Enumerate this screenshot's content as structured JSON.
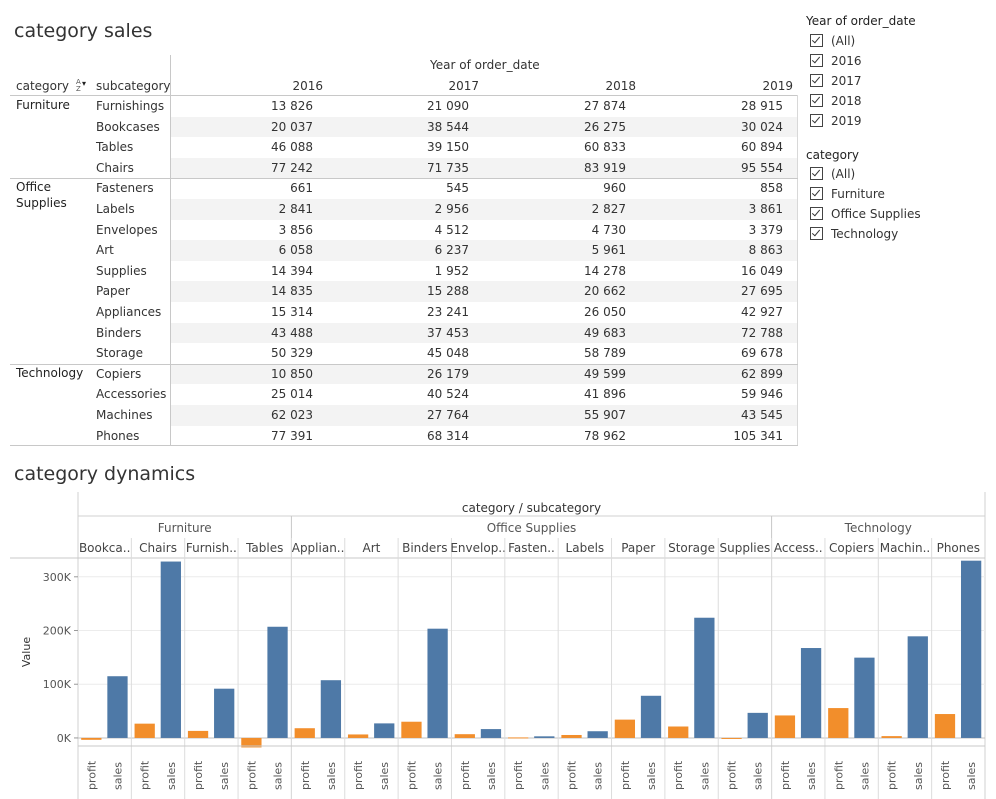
{
  "crosstab": {
    "title": "category sales",
    "columns_title": "Year of order_date",
    "col_category": "category",
    "col_subcategory": "subcategory",
    "years": [
      "2016",
      "2017",
      "2018",
      "2019"
    ],
    "rows": [
      {
        "category": "Furniture",
        "subcategory": "Furnishings",
        "values": [
          "13 826",
          "21 090",
          "27 874",
          "28 915"
        ]
      },
      {
        "category": "",
        "subcategory": "Bookcases",
        "values": [
          "20 037",
          "38 544",
          "26 275",
          "30 024"
        ]
      },
      {
        "category": "",
        "subcategory": "Tables",
        "values": [
          "46 088",
          "39 150",
          "60 833",
          "60 894"
        ]
      },
      {
        "category": "",
        "subcategory": "Chairs",
        "values": [
          "77 242",
          "71 735",
          "83 919",
          "95 554"
        ]
      },
      {
        "category": "Office Supplies",
        "subcategory": "Fasteners",
        "values": [
          "661",
          "545",
          "960",
          "858"
        ]
      },
      {
        "category": "",
        "subcategory": "Labels",
        "values": [
          "2 841",
          "2 956",
          "2 827",
          "3 861"
        ]
      },
      {
        "category": "",
        "subcategory": "Envelopes",
        "values": [
          "3 856",
          "4 512",
          "4 730",
          "3 379"
        ]
      },
      {
        "category": "",
        "subcategory": "Art",
        "values": [
          "6 058",
          "6 237",
          "5 961",
          "8 863"
        ]
      },
      {
        "category": "",
        "subcategory": "Supplies",
        "values": [
          "14 394",
          "1 952",
          "14 278",
          "16 049"
        ]
      },
      {
        "category": "",
        "subcategory": "Paper",
        "values": [
          "14 835",
          "15 288",
          "20 662",
          "27 695"
        ]
      },
      {
        "category": "",
        "subcategory": "Appliances",
        "values": [
          "15 314",
          "23 241",
          "26 050",
          "42 927"
        ]
      },
      {
        "category": "",
        "subcategory": "Binders",
        "values": [
          "43 488",
          "37 453",
          "49 683",
          "72 788"
        ]
      },
      {
        "category": "",
        "subcategory": "Storage",
        "values": [
          "50 329",
          "45 048",
          "58 789",
          "69 678"
        ]
      },
      {
        "category": "Technology",
        "subcategory": "Copiers",
        "values": [
          "10 850",
          "26 179",
          "49 599",
          "62 899"
        ]
      },
      {
        "category": "",
        "subcategory": "Accessories",
        "values": [
          "25 014",
          "40 524",
          "41 896",
          "59 946"
        ]
      },
      {
        "category": "",
        "subcategory": "Machines",
        "values": [
          "62 023",
          "27 764",
          "55 907",
          "43 545"
        ]
      },
      {
        "category": "",
        "subcategory": "Phones",
        "values": [
          "77 391",
          "68 314",
          "78 962",
          "105 341"
        ]
      }
    ]
  },
  "filters": {
    "year": {
      "title": "Year of order_date",
      "options": [
        "(All)",
        "2016",
        "2017",
        "2018",
        "2019"
      ]
    },
    "category": {
      "title": "category",
      "options": [
        "(All)",
        "Furniture",
        "Office Supplies",
        "Technology"
      ]
    }
  },
  "dynamics_title": "category dynamics",
  "chart_data": {
    "type": "bar",
    "title": "category dynamics",
    "header_title": "category / subcategory",
    "ylabel": "Value",
    "ylim": [
      -15000,
      335000
    ],
    "yticks": [
      0,
      100000,
      200000,
      300000
    ],
    "ytick_labels": [
      "0K",
      "100K",
      "200K",
      "300K"
    ],
    "measures": [
      "profit",
      "sales"
    ],
    "colors": {
      "profit": "#f28e2b",
      "sales": "#4e79a7"
    },
    "grid": true,
    "groups": [
      {
        "category": "Furniture",
        "subcategories": [
          {
            "label": "Bookca..",
            "name": "Bookcases",
            "profit": -3500,
            "sales": 114900
          },
          {
            "label": "Chairs",
            "name": "Chairs",
            "profit": 26600,
            "sales": 328400
          },
          {
            "label": "Furnish..",
            "name": "Furnishings",
            "profit": 13100,
            "sales": 91700
          },
          {
            "label": "Tables",
            "name": "Tables",
            "profit": -17700,
            "sales": 207000
          }
        ]
      },
      {
        "category": "Office Supplies",
        "subcategories": [
          {
            "label": "Applian..",
            "name": "Appliances",
            "profit": 18100,
            "sales": 107500
          },
          {
            "label": "Art",
            "name": "Art",
            "profit": 6500,
            "sales": 27100
          },
          {
            "label": "Binders",
            "name": "Binders",
            "profit": 30200,
            "sales": 203400
          },
          {
            "label": "Envelop..",
            "name": "Envelopes",
            "profit": 7000,
            "sales": 16500
          },
          {
            "label": "Fasten..",
            "name": "Fasteners",
            "profit": 950,
            "sales": 3000
          },
          {
            "label": "Labels",
            "name": "Labels",
            "profit": 5500,
            "sales": 12500
          },
          {
            "label": "Paper",
            "name": "Paper",
            "profit": 34100,
            "sales": 78500
          },
          {
            "label": "Storage",
            "name": "Storage",
            "profit": 21300,
            "sales": 223800
          },
          {
            "label": "Supplies",
            "name": "Supplies",
            "profit": -1200,
            "sales": 46700
          }
        ]
      },
      {
        "category": "Technology",
        "subcategories": [
          {
            "label": "Access..",
            "name": "Accessories",
            "profit": 41900,
            "sales": 167400
          },
          {
            "label": "Copiers",
            "name": "Copiers",
            "profit": 55600,
            "sales": 149500
          },
          {
            "label": "Machin..",
            "name": "Machines",
            "profit": 3400,
            "sales": 189200
          },
          {
            "label": "Phones",
            "name": "Phones",
            "profit": 44500,
            "sales": 330000
          }
        ]
      }
    ]
  }
}
